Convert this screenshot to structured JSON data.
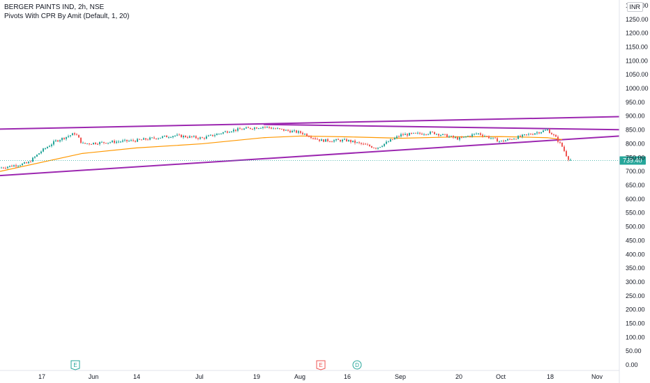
{
  "header": {
    "symbol_line": "BERGER PAINTS IND, 2h, NSE",
    "indicator_line": "Pivots With CPR By Amit (Default, 1, 20)"
  },
  "currency_badge": "INR",
  "colors": {
    "up": "#26a69a",
    "down": "#ef5350",
    "trendline": "#9c27b0",
    "ma": "#ff9800",
    "price_tag": "#26a69a",
    "earnings": "#26a69a",
    "earnings_neg": "#ef5350",
    "dividend": "#26a69a"
  },
  "chart_data": {
    "type": "candlestick",
    "title": "BERGER PAINTS IND, 2h, NSE",
    "ylim": [
      -20,
      1320
    ],
    "y_ticks": [
      "0.00",
      "50.00",
      "100.00",
      "150.00",
      "200.00",
      "250.00",
      "300.00",
      "350.00",
      "400.00",
      "450.00",
      "500.00",
      "550.00",
      "600.00",
      "650.00",
      "700.00",
      "750.00",
      "800.00",
      "850.00",
      "900.00",
      "950.00",
      "1000.00",
      "1050.00",
      "1100.00",
      "1150.00",
      "1200.00",
      "1250.00",
      "1300.00"
    ],
    "x_ticks": [
      "17",
      "Jun",
      "14",
      "Jul",
      "19",
      "Aug",
      "16",
      "Sep",
      "20",
      "Oct",
      "18",
      "Nov"
    ],
    "last_price": "739.40",
    "price_path": [
      [
        "17-May-start",
        713
      ],
      [
        "late-May-a",
        730
      ],
      [
        "late-May-b",
        775
      ],
      [
        "late-May-c",
        810
      ],
      [
        "late-May-d",
        838
      ],
      [
        "Jun-start",
        800
      ],
      [
        "Jun-mid",
        812
      ],
      [
        "Jun-late",
        830
      ],
      [
        "Jul-start",
        820
      ],
      [
        "Jul-a",
        848
      ],
      [
        "Jul-19",
        862
      ],
      [
        "Jul-late",
        848
      ],
      [
        "Aug-start",
        840
      ],
      [
        "Aug-a",
        812
      ],
      [
        "Aug-16",
        812
      ],
      [
        "Aug-late",
        785
      ],
      [
        "Sep-start",
        832
      ],
      [
        "Sep-a",
        840
      ],
      [
        "Sep-20",
        818
      ],
      [
        "Sep-late",
        838
      ],
      [
        "Oct-start",
        808
      ],
      [
        "Oct-a",
        822
      ],
      [
        "Oct-b",
        835
      ],
      [
        "Oct-18",
        850
      ],
      [
        "Oct-c",
        825
      ],
      [
        "Oct-d",
        790
      ],
      [
        "Oct-e",
        748
      ],
      [
        "last",
        739.4
      ]
    ],
    "moving_average": [
      [
        "17-May-start",
        700
      ],
      [
        "Jun-start",
        765
      ],
      [
        "Jun-mid",
        785
      ],
      [
        "Jul-start",
        800
      ],
      [
        "Jul-19",
        822
      ],
      [
        "Aug-start",
        828
      ],
      [
        "Aug-16",
        825
      ],
      [
        "Sep-start",
        820
      ],
      [
        "Sep-20",
        825
      ],
      [
        "Oct-start",
        826
      ],
      [
        "Oct-18",
        822
      ],
      [
        "Oct-d",
        815
      ]
    ],
    "trendlines": [
      {
        "from": [
          "17-May-start",
          853
        ],
        "to": [
          "Nov-end",
          898
        ]
      },
      {
        "from": [
          "Jul-19",
          870
        ],
        "to": [
          "Nov-end",
          851
        ]
      },
      {
        "from": [
          "17-May-start",
          685
        ],
        "to": [
          "Nov-end",
          828
        ]
      }
    ],
    "events": [
      {
        "label": "E",
        "date": "late-May",
        "type": "earnings"
      },
      {
        "label": "E",
        "date": "Aug-a",
        "type": "earnings-negative"
      },
      {
        "label": "D",
        "date": "Aug-a2",
        "type": "dividend"
      }
    ]
  }
}
